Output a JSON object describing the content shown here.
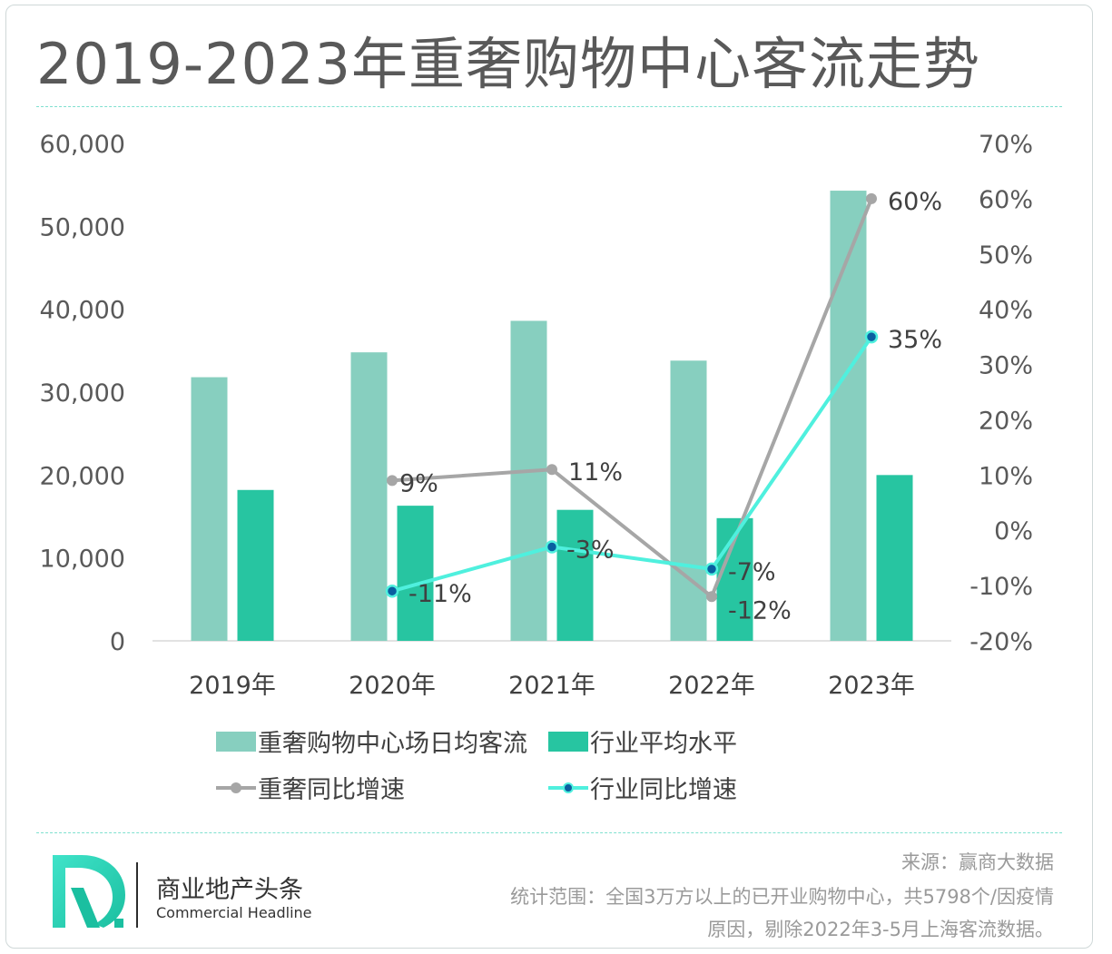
{
  "title": "2019-2023年重奢购物中心客流走势",
  "chart_data": {
    "type": "bar",
    "categories": [
      "2019年",
      "2020年",
      "2021年",
      "2022年",
      "2023年"
    ],
    "series": [
      {
        "name": "重奢购物中心场日均客流",
        "kind": "bar",
        "axis": "left",
        "color": "#87cfbf",
        "values": [
          31800,
          34800,
          38600,
          33800,
          54300
        ]
      },
      {
        "name": "行业平均水平",
        "kind": "bar",
        "axis": "left",
        "color": "#27c5a1",
        "values": [
          18200,
          16300,
          15800,
          14800,
          20000
        ]
      },
      {
        "name": "重奢同比增速",
        "kind": "line",
        "axis": "right",
        "color": "#a6a6a6",
        "values": [
          null,
          9,
          11,
          -12,
          60
        ],
        "labels": [
          "",
          "9%",
          "11%",
          "-12%",
          "60%"
        ]
      },
      {
        "name": "行业同比增速",
        "kind": "line",
        "axis": "right",
        "color": "#4ff0de",
        "values": [
          null,
          -11,
          -3,
          -7,
          35
        ],
        "labels": [
          "",
          "-11%",
          "-3%",
          "-7%",
          "35%"
        ]
      }
    ],
    "y_left": {
      "range": [
        0,
        60000
      ],
      "ticks": [
        "0",
        "10,000",
        "20,000",
        "30,000",
        "40,000",
        "50,000",
        "60,000"
      ]
    },
    "y_right": {
      "range": [
        -20,
        70
      ],
      "ticks": [
        "-20%",
        "-10%",
        "0%",
        "10%",
        "20%",
        "30%",
        "40%",
        "50%",
        "60%",
        "70%"
      ]
    },
    "grid": false,
    "legend_position": "bottom"
  },
  "footer": {
    "brand_cn": "商业地产头条",
    "brand_en": "Commercial Headline",
    "source": "来源：赢商大数据",
    "note_line1": "统计范围：全国3万方以上的已开业购物中心，共5798个/因疫情",
    "note_line2": "原因，剔除2022年3-5月上海客流数据。"
  }
}
